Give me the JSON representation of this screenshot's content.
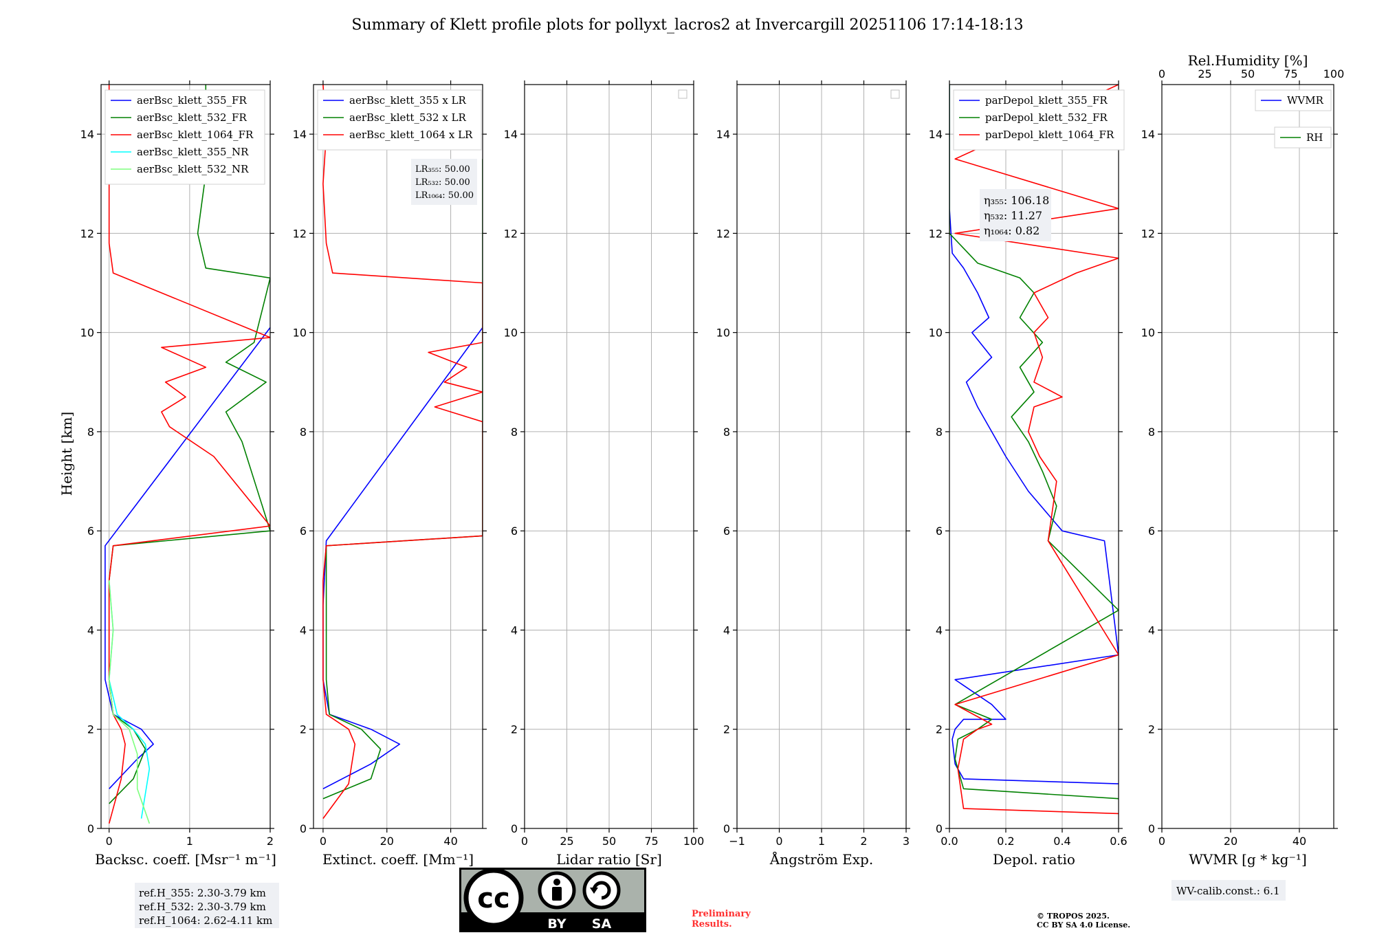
{
  "chart_data": [
    {
      "type": "line",
      "title": "Summary of Klett profile plots for pollyxt_lacros2 at Invercargill 20251106 17:14-18:13",
      "xlabel": "Backsc. coeff. [Msr⁻¹ m⁻¹]",
      "ylabel": "Height [km]",
      "xlim": [
        -0.1,
        2.0
      ],
      "ylim": [
        0,
        15
      ],
      "xticks": [
        "0",
        "1",
        "2"
      ],
      "yticks": [
        "0",
        "2",
        "4",
        "6",
        "8",
        "10",
        "12",
        "14"
      ],
      "legend": "top-left",
      "series": [
        {
          "name": "aerBsc_klett_355_FR",
          "color": "#0000ff",
          "x": [
            0.0,
            0.35,
            0.55,
            0.4,
            0.05,
            -0.05,
            -0.05,
            -0.05,
            2.0
          ],
          "y": [
            0.8,
            1.4,
            1.7,
            2.0,
            2.3,
            3.0,
            4.5,
            5.7,
            10.1
          ]
        },
        {
          "name": "aerBsc_klett_532_FR",
          "color": "#008000",
          "x": [
            0.0,
            0.3,
            0.45,
            0.3,
            0.05,
            0.0,
            0.0,
            0.05,
            2.0,
            1.65,
            1.45,
            1.95,
            1.45,
            1.8,
            2.0,
            1.2,
            1.1,
            1.15,
            1.2,
            1.1,
            1.2,
            1.2
          ],
          "y": [
            0.5,
            1.0,
            1.6,
            2.0,
            2.3,
            3.0,
            5.0,
            5.7,
            6.0,
            7.8,
            8.4,
            9.0,
            9.4,
            9.8,
            11.1,
            11.3,
            12.0,
            12.6,
            13.2,
            13.8,
            14.4,
            15.0
          ]
        },
        {
          "name": "aerBsc_klett_1064_FR",
          "color": "#ff0000",
          "x": [
            0.0,
            0.15,
            0.2,
            0.15,
            0.05,
            0.0,
            0.0,
            0.05,
            2.0,
            1.3,
            0.75,
            0.65,
            0.95,
            0.7,
            1.2,
            0.65,
            2.0,
            0.05,
            0.0,
            0.0,
            0.0,
            0.0
          ],
          "y": [
            0.1,
            1.0,
            1.7,
            2.0,
            2.3,
            3.0,
            5.0,
            5.7,
            6.1,
            7.5,
            8.1,
            8.4,
            8.7,
            9.0,
            9.3,
            9.7,
            9.9,
            11.2,
            11.8,
            13.0,
            14.0,
            15.0
          ]
        },
        {
          "name": "aerBsc_klett_355_NR",
          "color": "#00ffff",
          "x": [
            0.4,
            0.5,
            0.45,
            0.3,
            0.1,
            0.0,
            0.05,
            0.0
          ],
          "y": [
            0.2,
            1.2,
            1.7,
            2.0,
            2.3,
            3.0,
            4.0,
            5.0
          ]
        },
        {
          "name": "aerBsc_klett_532_NR",
          "color": "#7fff7f",
          "x": [
            0.5,
            0.35,
            0.35,
            0.25,
            0.05,
            0.0,
            0.05,
            0.0
          ],
          "y": [
            0.1,
            0.8,
            1.5,
            2.0,
            2.3,
            3.0,
            4.0,
            5.0
          ]
        }
      ]
    },
    {
      "type": "line",
      "xlabel": "Extinct. coeff. [Mm⁻¹]",
      "xlim": [
        -3,
        50
      ],
      "ylim": [
        0,
        15
      ],
      "xticks": [
        "0",
        "20",
        "40"
      ],
      "yticks": [
        "0",
        "2",
        "4",
        "6",
        "8",
        "10",
        "12",
        "14"
      ],
      "legend": "top-left",
      "series": [
        {
          "name": "aerBsc_klett_355 x LR",
          "color": "#0000ff",
          "x": [
            0.0,
            15.0,
            24.0,
            15.0,
            2.0,
            0.0,
            0.0,
            1.0,
            50.0
          ],
          "y": [
            0.8,
            1.3,
            1.7,
            2.0,
            2.3,
            3.0,
            4.5,
            5.8,
            10.1
          ]
        },
        {
          "name": "aerBsc_klett_532 x LR",
          "color": "#008000",
          "x": [
            0.0,
            15.0,
            18.0,
            12.0,
            2.0,
            1.0,
            1.0,
            1.0,
            50.0,
            50.0
          ],
          "y": [
            0.6,
            1.0,
            1.6,
            2.0,
            2.3,
            3.0,
            5.0,
            5.7,
            5.9,
            13.5
          ]
        },
        {
          "name": "aerBsc_klett_1064 x LR",
          "color": "#ff0000",
          "x": [
            0.0,
            8.0,
            10.0,
            8.0,
            1.0,
            0.0,
            0.0,
            1.0,
            50.0,
            50.0,
            35.0,
            50.0,
            38.0,
            45.0,
            33.0,
            50.0,
            50.0,
            3.0,
            1.0,
            0.0,
            1.0,
            0.0
          ],
          "y": [
            0.2,
            0.9,
            1.7,
            2.0,
            2.3,
            3.0,
            5.0,
            5.7,
            5.9,
            8.2,
            8.5,
            8.8,
            9.0,
            9.3,
            9.6,
            9.8,
            11.0,
            11.2,
            11.8,
            13.0,
            14.0,
            15.0
          ]
        }
      ],
      "annotations": [
        "LR₃₅₅: 50.00",
        "LR₅₃₂: 50.00",
        "LR₁₀₆₄: 50.00"
      ]
    },
    {
      "type": "line",
      "xlabel": "Lidar ratio [Sr]",
      "xlim": [
        0,
        100
      ],
      "ylim": [
        0,
        15
      ],
      "xticks": [
        "0",
        "25",
        "50",
        "75",
        "100"
      ],
      "yticks": [
        "0",
        "2",
        "4",
        "6",
        "8",
        "10",
        "12",
        "14"
      ],
      "series": []
    },
    {
      "type": "line",
      "xlabel": "Ångström Exp.",
      "xlim": [
        -1,
        3
      ],
      "ylim": [
        0,
        15
      ],
      "xticks": [
        "−1",
        "0",
        "1",
        "2",
        "3"
      ],
      "yticks": [
        "0",
        "2",
        "4",
        "6",
        "8",
        "10",
        "12",
        "14"
      ],
      "series": []
    },
    {
      "type": "line",
      "xlabel": "Depol. ratio",
      "xlim": [
        0,
        0.6
      ],
      "ylim": [
        0,
        15
      ],
      "xticks": [
        "0.0",
        "0.2",
        "0.4",
        "0.6"
      ],
      "yticks": [
        "0",
        "2",
        "4",
        "6",
        "8",
        "10",
        "12",
        "14"
      ],
      "legend": "top-left",
      "series": [
        {
          "name": "parDepol_klett_355_FR",
          "color": "#0000ff",
          "x": [
            0.6,
            0.05,
            0.02,
            0.01,
            0.02,
            0.05,
            0.2,
            0.15,
            0.02,
            0.6,
            0.55,
            0.4,
            0.28,
            0.2,
            0.15,
            0.1,
            0.06,
            0.15,
            0.08,
            0.14,
            0.1,
            0.05,
            0.01,
            0.0,
            0.0
          ],
          "y": [
            0.9,
            1.0,
            1.3,
            1.8,
            2.0,
            2.2,
            2.2,
            2.5,
            3.0,
            3.5,
            5.8,
            6.0,
            6.8,
            7.5,
            8.0,
            8.5,
            9.0,
            9.5,
            10.0,
            10.3,
            10.8,
            11.3,
            11.6,
            12.5,
            15.0
          ]
        },
        {
          "name": "parDepol_klett_532_FR",
          "color": "#008000",
          "x": [
            0.6,
            0.05,
            0.02,
            0.03,
            0.1,
            0.15,
            0.02,
            0.6,
            0.35,
            0.38,
            0.33,
            0.28,
            0.22,
            0.3,
            0.25,
            0.33,
            0.25,
            0.3,
            0.25,
            0.1,
            0.0,
            0.0
          ],
          "y": [
            0.6,
            0.8,
            1.4,
            1.8,
            2.0,
            2.2,
            2.5,
            4.4,
            5.8,
            6.5,
            7.2,
            7.8,
            8.3,
            8.8,
            9.3,
            9.8,
            10.3,
            10.8,
            11.1,
            11.4,
            12.0,
            15.0
          ]
        },
        {
          "name": "parDepol_klett_1064_FR",
          "color": "#ff0000",
          "x": [
            0.6,
            0.05,
            0.03,
            0.05,
            0.1,
            0.15,
            0.02,
            0.6,
            0.35,
            0.38,
            0.32,
            0.28,
            0.3,
            0.4,
            0.3,
            0.33,
            0.3,
            0.35,
            0.3,
            0.45,
            0.6,
            0.02,
            0.6,
            0.02,
            0.6
          ],
          "y": [
            0.3,
            0.4,
            1.2,
            1.8,
            2.0,
            2.1,
            2.5,
            3.5,
            5.8,
            7.0,
            7.5,
            8.0,
            8.5,
            8.7,
            9.0,
            9.5,
            10.0,
            10.3,
            10.8,
            11.2,
            11.5,
            12.0,
            12.5,
            13.5,
            15.0
          ]
        }
      ],
      "annotations": [
        "η₃₅₅: 106.18",
        "η₅₃₂: 11.27",
        "η₁₀₆₄: 0.82"
      ]
    },
    {
      "type": "line",
      "xlabel": "WVMR [g * kg⁻¹]",
      "x2label": "Rel.Humidity [%]",
      "xlim": [
        0,
        50
      ],
      "x2lim": [
        0,
        100
      ],
      "ylim": [
        0,
        15
      ],
      "xticks": [
        "0",
        "20",
        "40"
      ],
      "x2ticks": [
        "0",
        "25",
        "50",
        "75",
        "100"
      ],
      "yticks": [
        "0",
        "2",
        "4",
        "6",
        "8",
        "10",
        "12",
        "14"
      ],
      "legend": "top-right",
      "series": [
        {
          "name": "WVMR",
          "color": "#0000ff",
          "x": [],
          "y": []
        },
        {
          "name": "RH",
          "color": "#008000",
          "x": [],
          "y": []
        }
      ]
    }
  ],
  "footer": {
    "ref_h_355": "ref.H_355: 2.30-3.79 km",
    "ref_h_532": "ref.H_532: 2.30-3.79 km",
    "ref_h_1064": "ref.H_1064: 2.62-4.11 km",
    "cc_by": "BY",
    "cc_sa": "SA",
    "cc_mark": "cc",
    "prelim_1": "Preliminary",
    "prelim_2": "Results.",
    "copy_1": "© TROPOS 2025.",
    "copy_2": "CC BY SA 4.0 License.",
    "wv_calib": "WV-calib.const.: 6.1"
  },
  "colors": {
    "blue": "#0000ff",
    "green": "#008000",
    "red": "#ff0000",
    "cyan": "#00ffff",
    "lightgreen": "#7fff7f",
    "prelim": "#ff3030"
  }
}
